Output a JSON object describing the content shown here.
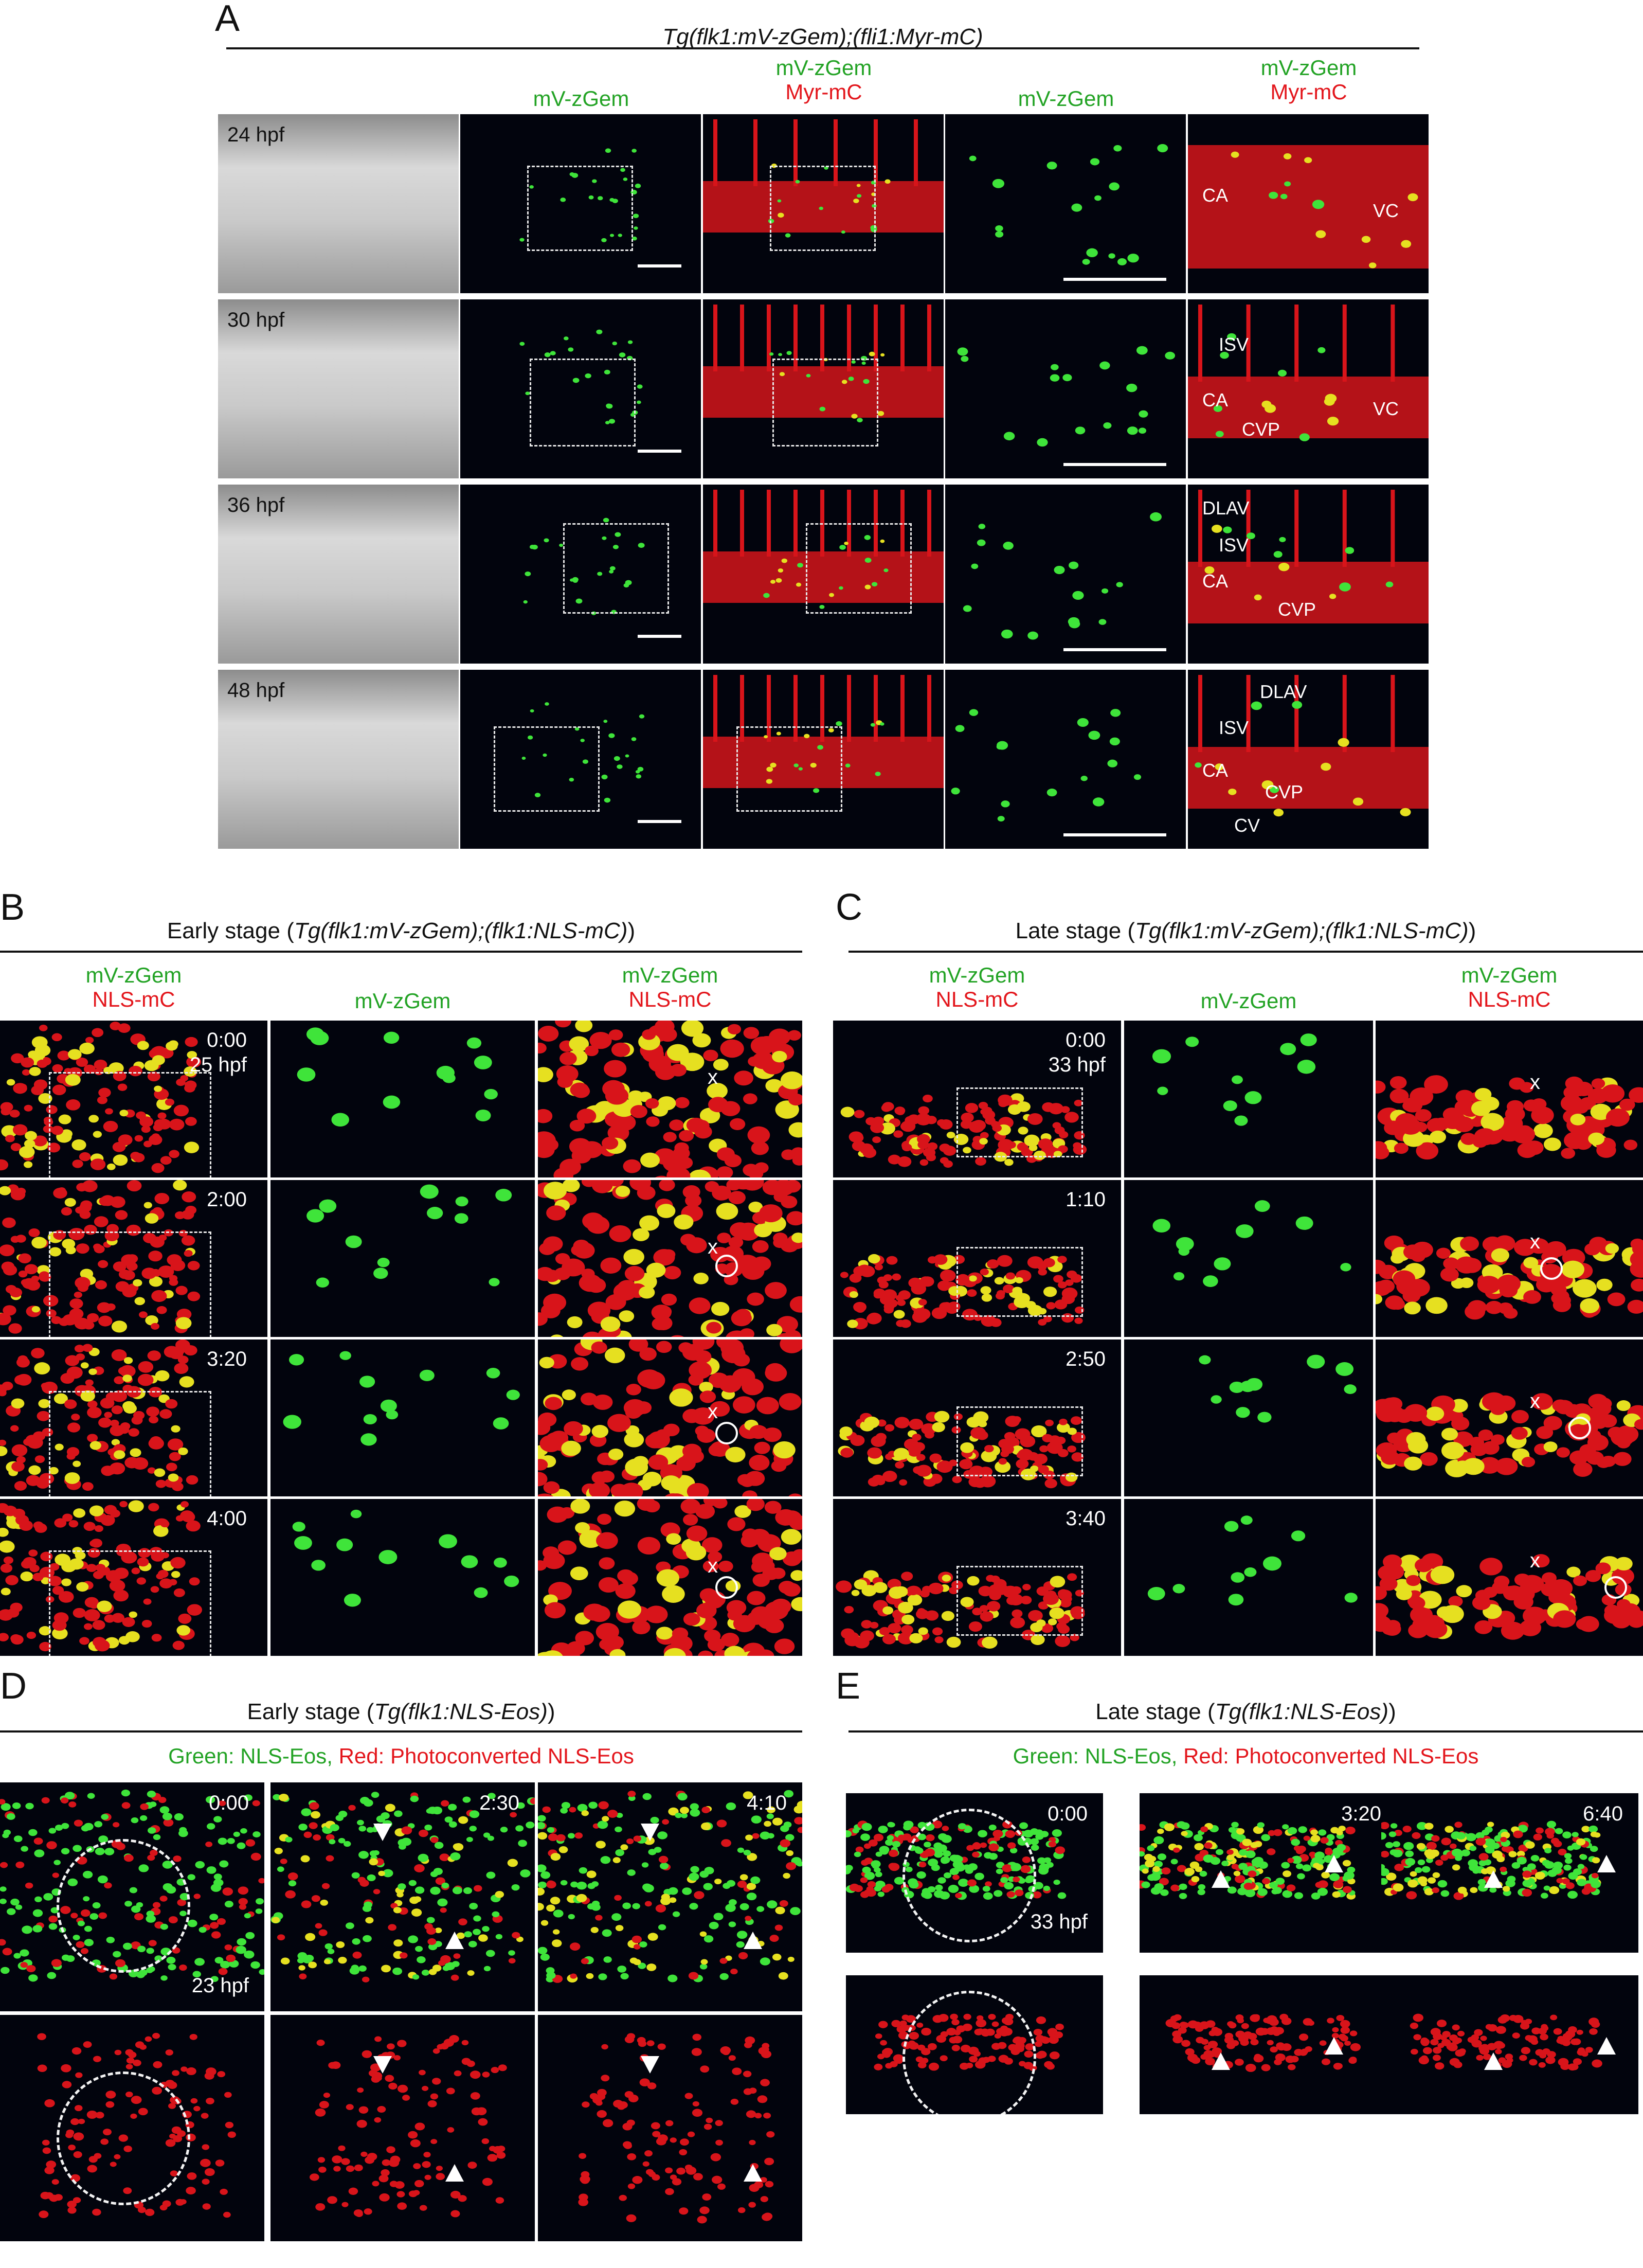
{
  "panel_letters": {
    "A": "A",
    "B": "B",
    "C": "C",
    "D": "D",
    "E": "E"
  },
  "panelA": {
    "title_line": "Tg(flk1:mV-zGem);(fli1:Myr-mC)",
    "col_headers": [
      {
        "green": "",
        "red": ""
      },
      {
        "green": "mV-zGem",
        "red": ""
      },
      {
        "green": "mV-zGem",
        "red": "Myr-mC"
      },
      {
        "green": "mV-zGem",
        "red": ""
      },
      {
        "green": "mV-zGem",
        "red": "Myr-mC"
      }
    ],
    "rows": [
      {
        "stage": "24 hpf",
        "labels": [
          "CA",
          "VC"
        ]
      },
      {
        "stage": "30 hpf",
        "labels": [
          "ISV",
          "CA",
          "CVP",
          "VC"
        ]
      },
      {
        "stage": "36 hpf",
        "labels": [
          "DLAV",
          "ISV",
          "CA",
          "CVP"
        ]
      },
      {
        "stage": "48 hpf",
        "labels": [
          "DLAV",
          "ISV",
          "CA",
          "CVP",
          "CV"
        ]
      }
    ]
  },
  "panelB": {
    "title_pre": "Early stage (",
    "title_it": "Tg(flk1:mV-zGem);(flk1:NLS-mC)",
    "title_post": ")",
    "col_headers": [
      {
        "green": "mV-zGem",
        "red": "NLS-mC"
      },
      {
        "green": "mV-zGem",
        "red": ""
      },
      {
        "green": "mV-zGem",
        "red": "NLS-mC"
      }
    ],
    "times": [
      "0:00",
      "2:00",
      "3:20",
      "4:00"
    ],
    "stage": "25 hpf",
    "x_mark": "x"
  },
  "panelC": {
    "title_pre": "Late stage (",
    "title_it": "Tg(flk1:mV-zGem);(flk1:NLS-mC)",
    "title_post": ")",
    "col_headers": [
      {
        "green": "mV-zGem",
        "red": "NLS-mC"
      },
      {
        "green": "mV-zGem",
        "red": ""
      },
      {
        "green": "mV-zGem",
        "red": "NLS-mC"
      }
    ],
    "times": [
      "0:00",
      "1:10",
      "2:50",
      "3:40"
    ],
    "stage": "33 hpf",
    "x_mark": "x"
  },
  "panelD": {
    "title_pre": "Early stage (",
    "title_it": "Tg(flk1:NLS-Eos)",
    "title_post": ")",
    "legend_green": "Green: NLS-Eos,",
    "legend_red": " Red: Photoconverted NLS-Eos",
    "times": [
      "0:00",
      "2:30",
      "4:10"
    ],
    "stage": "23 hpf"
  },
  "panelE": {
    "title_pre": "Late stage (",
    "title_it": "Tg(flk1:NLS-Eos)",
    "title_post": ")",
    "legend_green": "Green: NLS-Eos,",
    "legend_red": " Red: Photoconverted NLS-Eos",
    "times": [
      "0:00",
      "3:20",
      "6:40"
    ],
    "stage": "33 hpf"
  },
  "colors": {
    "green": "#23a325",
    "red": "#e3161c",
    "panel_bg": "#02040d",
    "cell_red": "#d8141a",
    "cell_green": "#3fe43a",
    "cell_yellow": "#e6e020"
  }
}
